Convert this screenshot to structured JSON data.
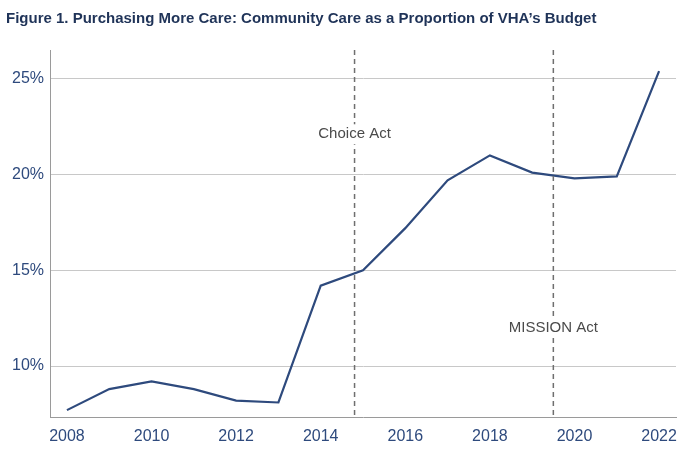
{
  "chart_data": {
    "type": "line",
    "title": "Figure 1. Purchasing More Care: Community Care as a Proportion of VHA’s Budget",
    "x": [
      2008,
      2009,
      2010,
      2011,
      2012,
      2013,
      2014,
      2015,
      2016,
      2017,
      2018,
      2019,
      2020,
      2021,
      2022
    ],
    "series": [
      {
        "name": "Community Care as a Proportion of VHA’s Budget",
        "color": "#2e4a7d",
        "marker": "none",
        "line_style": "solid",
        "values": [
          7.7,
          8.8,
          9.2,
          8.8,
          8.2,
          8.1,
          14.2,
          15.0,
          17.2,
          19.7,
          21.0,
          20.1,
          19.8,
          19.9,
          25.4
        ]
      }
    ],
    "xlim": [
      2007.6,
      2022.4
    ],
    "xticks": [
      2008,
      2010,
      2012,
      2014,
      2016,
      2018,
      2020,
      2022
    ],
    "ylim": [
      7.3,
      26.5
    ],
    "yticks": [
      {
        "value": 10,
        "label": "10%"
      },
      {
        "value": 15,
        "label": "15%"
      },
      {
        "value": 20,
        "label": "20%"
      },
      {
        "value": 25,
        "label": "25%"
      }
    ],
    "grid": "y",
    "annotations": [
      {
        "text": "Choice Act",
        "x": 2014.8,
        "y": 22.1,
        "line_style": "dashed"
      },
      {
        "text": "MISSION Act",
        "x": 2019.5,
        "y": 12.0,
        "line_style": "dashed"
      }
    ]
  }
}
